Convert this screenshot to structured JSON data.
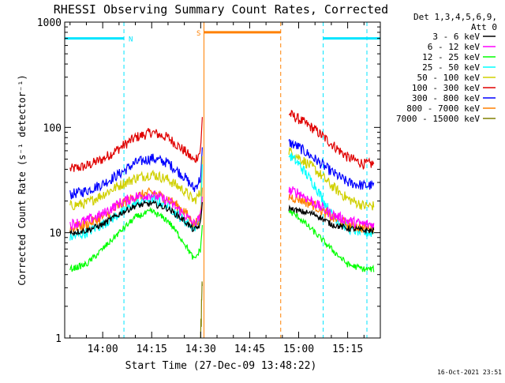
{
  "chart_data": {
    "type": "line",
    "title": "RHESSI Observing Summary Count Rates, Corrected",
    "xlabel": "Start Time (27-Dec-09 13:48:22)",
    "ylabel": "Corrected Count Rate (s⁻¹ detector⁻¹)",
    "yscale": "log",
    "ylim": [
      1,
      1000
    ],
    "xlim": [
      "13:48:22",
      "15:25:00"
    ],
    "xticks": [
      "14:00",
      "14:15",
      "14:30",
      "14:45",
      "15:00",
      "15:15"
    ],
    "yticks": [
      "1",
      "10",
      "100",
      "1000"
    ],
    "timestamp": "16-Oct-2021 23:51",
    "legend": {
      "header": [
        "Det 1,3,4,5,6,9,",
        "Att 0"
      ],
      "position": "right",
      "entries": [
        {
          "label": "3 - 6 keV",
          "color": "#000000"
        },
        {
          "label": "6 - 12 keV",
          "color": "#ff00ff"
        },
        {
          "label": "12 - 25 keV",
          "color": "#00ff00"
        },
        {
          "label": "25 - 50 keV",
          "color": "#00ffff"
        },
        {
          "label": "50 - 100 keV",
          "color": "#d0d000"
        },
        {
          "label": "100 - 300 keV",
          "color": "#e00000"
        },
        {
          "label": "300 - 800 keV",
          "color": "#0000ff"
        },
        {
          "label": "800 - 7000 keV",
          "color": "#ff8000"
        },
        {
          "label": "7000 - 15000 keV",
          "color": "#808000"
        }
      ]
    },
    "intervals": [
      {
        "label": "N",
        "color": "#00e5ff",
        "start": "13:48:22",
        "end": "14:06:30",
        "level": 700
      },
      {
        "label": "",
        "color": "#00e5ff",
        "start": "15:07:30",
        "end": "15:25:00",
        "level": 700
      },
      {
        "label": "S",
        "color": "#ff8000",
        "start": "14:31:00",
        "end": "14:54:30",
        "level": 800
      }
    ],
    "series": [
      {
        "color": "#e00000",
        "segments": [
          {
            "x": [
              "13:50",
              "13:55",
              "14:00",
              "14:05",
              "14:10",
              "14:15",
              "14:20",
              "14:25",
              "14:28",
              "14:30",
              "14:30:30"
            ],
            "y": [
              40,
              43,
              50,
              63,
              80,
              90,
              80,
              60,
              48,
              60,
              130
            ]
          },
          {
            "x": [
              "14:57",
              "15:00",
              "15:05",
              "15:10",
              "15:15",
              "15:20",
              "15:23"
            ],
            "y": [
              135,
              120,
              95,
              70,
              52,
              45,
              45
            ]
          }
        ]
      },
      {
        "color": "#0000ff",
        "segments": [
          {
            "x": [
              "13:50",
              "13:55",
              "14:00",
              "14:05",
              "14:10",
              "14:15",
              "14:20",
              "14:25",
              "14:28",
              "14:30",
              "14:30:30"
            ],
            "y": [
              23,
              25,
              29,
              36,
              46,
              51,
              46,
              34,
              26,
              33,
              60
            ]
          },
          {
            "x": [
              "14:57",
              "15:00",
              "15:05",
              "15:10",
              "15:15",
              "15:20",
              "15:23"
            ],
            "y": [
              72,
              65,
              50,
              38,
              30,
              28,
              28
            ]
          }
        ]
      },
      {
        "color": "#d0d000",
        "segments": [
          {
            "x": [
              "13:50",
              "13:55",
              "14:00",
              "14:05",
              "14:10",
              "14:15",
              "14:20",
              "14:25",
              "14:28",
              "14:30",
              "14:30:30"
            ],
            "y": [
              18,
              19,
              23,
              28,
              33,
              36,
              32,
              25,
              20,
              24,
              50
            ]
          },
          {
            "x": [
              "14:57",
              "15:00",
              "15:05",
              "15:10",
              "15:15",
              "15:20",
              "15:23"
            ],
            "y": [
              60,
              52,
              40,
              28,
              21,
              18,
              18
            ]
          }
        ]
      },
      {
        "color": "#00ffff",
        "segments": [
          {
            "x": [
              "13:50",
              "13:55",
              "14:00",
              "14:05",
              "14:10",
              "14:15",
              "14:20",
              "14:25",
              "14:28",
              "14:30",
              "14:30:30"
            ],
            "y": [
              9,
              10,
              12,
              15,
              19,
              21,
              18,
              13,
              11,
              14,
              40
            ]
          },
          {
            "x": [
              "14:57",
              "15:00",
              "15:05",
              "15:10",
              "15:15",
              "15:20",
              "15:23"
            ],
            "y": [
              55,
              45,
              28,
              15,
              11,
              10,
              10
            ]
          }
        ]
      },
      {
        "color": "#ff8000",
        "segments": [
          {
            "x": [
              "13:50",
              "13:55",
              "14:00",
              "14:05",
              "14:10",
              "14:15",
              "14:20",
              "14:25",
              "14:28",
              "14:30",
              "14:30:30"
            ],
            "y": [
              11,
              12,
              14,
              18,
              22,
              24,
              21,
              16,
              12,
              14,
              25
            ]
          },
          {
            "x": [
              "14:57",
              "15:00",
              "15:05",
              "15:10",
              "15:15",
              "15:20",
              "15:23"
            ],
            "y": [
              22,
              21,
              18,
              14,
              12,
              11,
              11
            ]
          }
        ]
      },
      {
        "color": "#ff00ff",
        "segments": [
          {
            "x": [
              "13:50",
              "13:55",
              "14:00",
              "14:05",
              "14:10",
              "14:15",
              "14:20",
              "14:25",
              "14:28",
              "14:30",
              "14:30:30"
            ],
            "y": [
              12,
              13,
              15,
              19,
              22,
              23,
              20,
              15,
              12,
              14,
              22
            ]
          },
          {
            "x": [
              "14:57",
              "15:00",
              "15:05",
              "15:10",
              "15:15",
              "15:20",
              "15:23"
            ],
            "y": [
              25,
              24,
              19,
              15,
              13,
              12,
              12
            ]
          }
        ]
      },
      {
        "color": "#000000",
        "segments": [
          {
            "x": [
              "13:50",
              "13:55",
              "14:00",
              "14:05",
              "14:10",
              "14:15",
              "14:20",
              "14:25",
              "14:28",
              "14:30",
              "14:30:30"
            ],
            "y": [
              10,
              10.5,
              12,
              15,
              18,
              19,
              17,
              13,
              10.5,
              12,
              20
            ]
          },
          {
            "x": [
              "14:57",
              "15:00",
              "15:05",
              "15:10",
              "15:15",
              "15:20",
              "15:23"
            ],
            "y": [
              17,
              16,
              15,
              12,
              11,
              10.5,
              10.5
            ]
          }
        ]
      },
      {
        "color": "#00ff00",
        "segments": [
          {
            "x": [
              "13:50",
              "13:55",
              "14:00",
              "14:05",
              "14:10",
              "14:15",
              "14:20",
              "14:25",
              "14:28",
              "14:30",
              "14:30:30"
            ],
            "y": [
              4.5,
              5,
              7,
              10,
              14,
              16,
              13,
              8,
              5.5,
              7,
              12
            ]
          },
          {
            "x": [
              "14:57",
              "15:00",
              "15:05",
              "15:10",
              "15:15",
              "15:20",
              "15:23"
            ],
            "y": [
              16,
              14,
              10,
              7,
              5,
              4.5,
              4.5
            ]
          }
        ]
      },
      {
        "color": "#808000",
        "segments": [
          {
            "x": [
              "14:30",
              "14:30:10",
              "14:30:20",
              "14:30:30"
            ],
            "y": [
              1,
              1.5,
              3,
              3
            ]
          }
        ]
      }
    ]
  }
}
